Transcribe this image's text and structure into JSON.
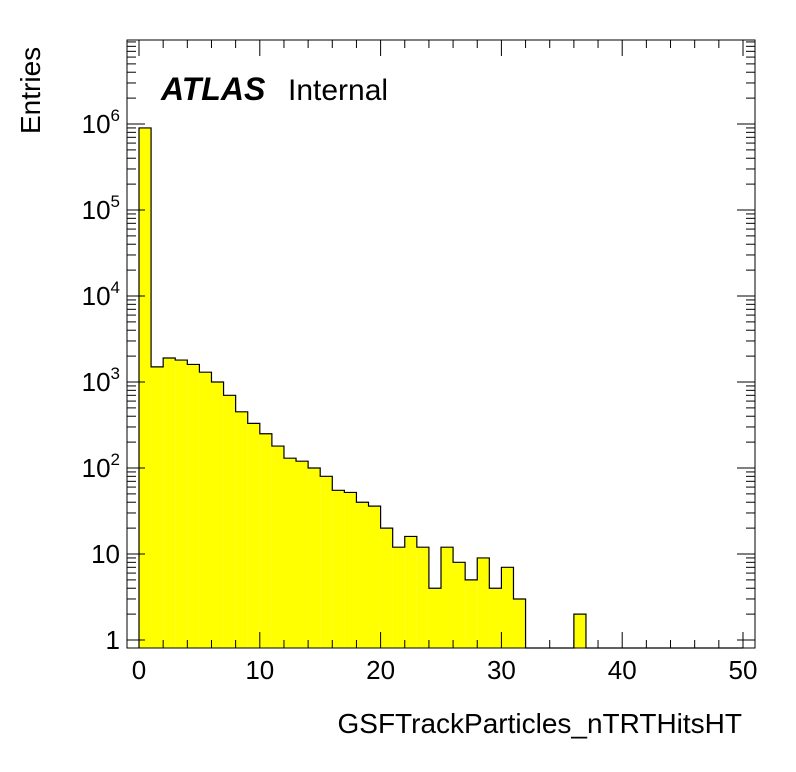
{
  "chart_data": {
    "type": "bar",
    "xlabel": "GSFTrackParticles_nTRTHitsHT",
    "ylabel": "Entries",
    "annotation": {
      "bold": "ATLAS",
      "regular": "Internal"
    },
    "xlim": [
      0,
      50
    ],
    "ylim": [
      0.8,
      9000000
    ],
    "yscale": "log",
    "bin_width": 1,
    "fill_color": "#ffff00",
    "line_color": "#000000",
    "x_ticks": [
      "0",
      "10",
      "20",
      "30",
      "40",
      "50"
    ],
    "y_ticks": [
      {
        "base": "1",
        "exp": ""
      },
      {
        "base": "10",
        "exp": ""
      },
      {
        "base": "10",
        "exp": "2"
      },
      {
        "base": "10",
        "exp": "3"
      },
      {
        "base": "10",
        "exp": "4"
      },
      {
        "base": "10",
        "exp": "5"
      },
      {
        "base": "10",
        "exp": "6"
      }
    ],
    "x": [
      0,
      1,
      2,
      3,
      4,
      5,
      6,
      7,
      8,
      9,
      10,
      11,
      12,
      13,
      14,
      15,
      16,
      17,
      18,
      19,
      20,
      21,
      22,
      23,
      24,
      25,
      26,
      27,
      28,
      29,
      30,
      31,
      32,
      33,
      34,
      35,
      36,
      37,
      38,
      39,
      40,
      41,
      42,
      43,
      44,
      45,
      46,
      47,
      48,
      49
    ],
    "values": [
      900000,
      1500,
      1900,
      1800,
      1600,
      1300,
      1000,
      700,
      450,
      330,
      250,
      180,
      130,
      120,
      100,
      80,
      55,
      52,
      40,
      36,
      20,
      12,
      16,
      12,
      4,
      12,
      8,
      5,
      9,
      4,
      7,
      3,
      0,
      0,
      0,
      0,
      2,
      0,
      0,
      0,
      0,
      0,
      0,
      0,
      0,
      0,
      0,
      0,
      0,
      0
    ]
  }
}
